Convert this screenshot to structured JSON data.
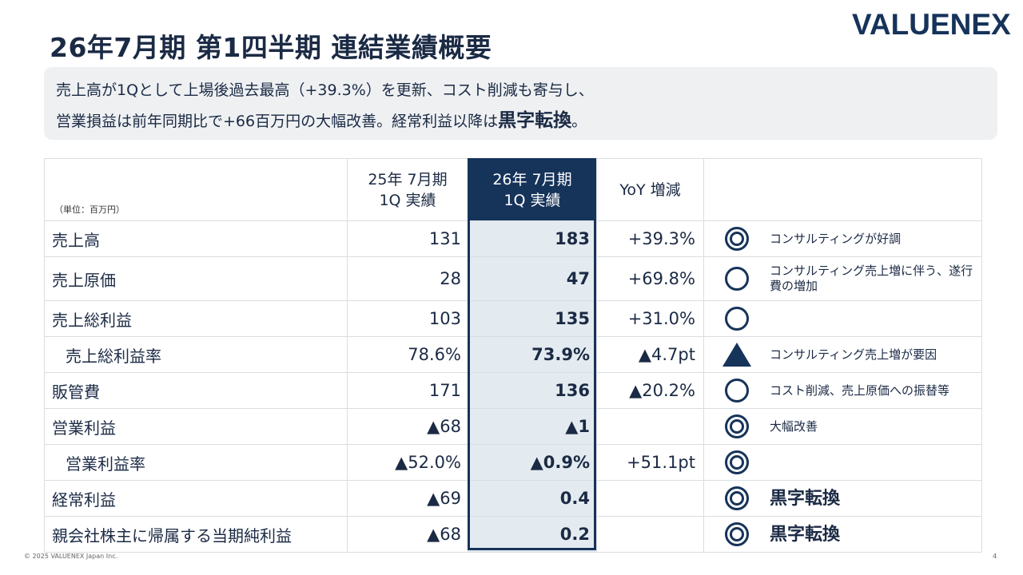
{
  "slide": {
    "title": "26年7月期 第1四半期 連結業績概要",
    "logo": "VALUENEX",
    "summary_line1": "売上高が1Qとして上場後過去最高（+39.3%）を更新、コスト削減も寄与し、",
    "summary_line2_a": "営業損益は前年同期比で+66百万円の大幅改善。経常利益以降は",
    "summary_line2_em": "黒字転換",
    "summary_line2_b": "。"
  },
  "table": {
    "unit": "（単位：百万円）",
    "header_prev_1": "25年 7月期",
    "header_prev_2": "1Q 実績",
    "header_curr_1": "26年 7月期",
    "header_curr_2": "1Q 実績",
    "header_yoy": "YoY 増減",
    "rows": [
      {
        "label": "売上高",
        "prev": "131",
        "curr": "183",
        "yoy": "+39.3%",
        "mark": "double-circle-icon",
        "comment": "コンサルティングが好調"
      },
      {
        "label": "売上原価",
        "prev": "28",
        "curr": "47",
        "yoy": "+69.8%",
        "mark": "circle-icon",
        "comment": "コンサルティング売上増に伴う、遂行費の増加"
      },
      {
        "label": "売上総利益",
        "prev": "103",
        "curr": "135",
        "yoy": "+31.0%",
        "mark": "circle-icon",
        "comment": ""
      },
      {
        "label": "売上総利益率",
        "prev": "78.6%",
        "curr": "73.9%",
        "yoy": "▲4.7pt",
        "mark": "triangle-icon",
        "comment": "コンサルティング売上増が要因"
      },
      {
        "label": "販管費",
        "prev": "171",
        "curr": "136",
        "yoy": "▲20.2%",
        "mark": "circle-icon",
        "comment": "コスト削減、売上原価への振替等"
      },
      {
        "label": "営業利益",
        "prev": "▲68",
        "curr": "▲1",
        "yoy": "",
        "mark": "double-circle-icon",
        "comment": "大幅改善"
      },
      {
        "label": "営業利益率",
        "prev": "▲52.0%",
        "curr": "▲0.9%",
        "yoy": "+51.1pt",
        "mark": "double-circle-icon",
        "comment": ""
      },
      {
        "label": "経常利益",
        "prev": "▲69",
        "curr": "0.4",
        "yoy": "",
        "mark": "double-circle-icon",
        "comment": "黒字転換"
      },
      {
        "label": "親会社株主に帰属する当期純利益",
        "prev": "▲68",
        "curr": "0.2",
        "yoy": "",
        "mark": "double-circle-icon",
        "comment": "黒字転換"
      }
    ]
  },
  "footer": {
    "copyright": "© 2025 VALUENEX Japan Inc.",
    "page": "4"
  }
}
